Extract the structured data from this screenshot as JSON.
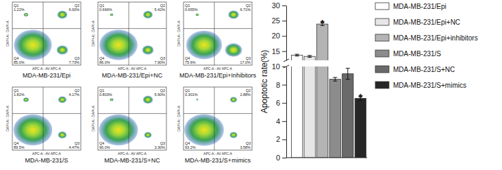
{
  "chart_data": [
    {
      "type": "quadrant",
      "title": "MDA-MB-231/Epi",
      "x_label": "APC-A:: AV APC-A",
      "y_label": "DAPI-A:: DAPI-A",
      "categories": [
        "Q1",
        "Q2",
        "Q3",
        "Q4"
      ],
      "values": [
        1.22,
        6.0,
        7.73,
        85.0
      ],
      "value_labels": [
        "1.22%",
        "6.00%",
        "7.73%",
        "85.0%"
      ],
      "tick_labels": false
    },
    {
      "type": "quadrant",
      "title": "MDA-MB-231/Epi+NC",
      "x_label": "APC-A:: AV APC-A",
      "y_label": "DAPI-A:: DAPI-A",
      "categories": [
        "Q1",
        "Q2",
        "Q3",
        "Q4"
      ],
      "values": [
        0.666,
        5.42,
        7.9,
        86.0
      ],
      "value_labels": [
        "0.666%",
        "5.42%",
        "7.90%",
        "86.0%"
      ],
      "tick_labels": false
    },
    {
      "type": "quadrant",
      "title": "MDA-MB-231/Epi+Inhibitors",
      "x_label": "APC-A:: AV APC-A",
      "y_label": "DAPI-A:: DAPI-A",
      "categories": [
        "Q1",
        "Q2",
        "Q3",
        "Q4"
      ],
      "values": [
        0.655,
        6.71,
        17.0,
        75.6
      ],
      "value_labels": [
        "0.655%",
        "6.71%",
        "17.0%",
        "75.6%"
      ],
      "tick_labels": false
    },
    {
      "type": "quadrant",
      "title": "MDA-MB-231/S",
      "x_label": "APC-A:: AV APC-A",
      "y_label": "DAPI-A:: DAPI-A",
      "categories": [
        "Q1",
        "Q2",
        "Q3",
        "Q4"
      ],
      "values": [
        1.82,
        4.17,
        4.47,
        89.5
      ],
      "value_labels": [
        "1.82%",
        "4.17%",
        "4.47%",
        "89.5%"
      ],
      "tick_labels": false
    },
    {
      "type": "quadrant",
      "title": "MDA-MB-231/S+NC",
      "x_label": "APC-A:: AV APC-A",
      "y_label": "DAPI-A:: DAPI-A",
      "categories": [
        "Q1",
        "Q2",
        "Q3",
        "Q4"
      ],
      "values": [
        0.803,
        5.9,
        3.3,
        90.0
      ],
      "value_labels": [
        "0.803%",
        "5.90%",
        "3.30%",
        "90.0%"
      ],
      "tick_labels": false
    },
    {
      "type": "quadrant",
      "title": "MDA-MB-231/S+mimics",
      "x_label": "APC-A:: AV APC-A",
      "y_label": "DAPI-A:: DAPI-A",
      "categories": [
        "Q1",
        "Q2",
        "Q3",
        "Q4"
      ],
      "values": [
        0.301,
        2.88,
        3.58,
        93.2
      ],
      "value_labels": [
        "0.301%",
        "2.88%",
        "3.58%",
        "93.2%"
      ],
      "tick_labels": false
    },
    {
      "type": "bar",
      "y_label": "Apoptotic rate(%)",
      "categories": [
        "MDA-MB-231/Epi",
        "MDA-MB-231/Epi+NC",
        "MDA-MB-231/Epi+inhibitors",
        "MDA-MB-231/S",
        "MDA-MB-231/S+NC",
        "MDA-MB-231/S+mimics"
      ],
      "values": [
        13.7,
        13.3,
        23.9,
        8.6,
        9.2,
        6.5
      ],
      "errors": [
        0.3,
        0.3,
        0.5,
        0.2,
        0.6,
        0.2
      ],
      "colors": [
        "#ffffff",
        "#e6e6e6",
        "#b4b4b4",
        "#8c8c8c",
        "#6a6a6a",
        "#262626"
      ],
      "ylim": [
        0,
        30
      ],
      "yticks": [
        0,
        2,
        4,
        6,
        8,
        10,
        15,
        20,
        25,
        30
      ],
      "y_break": [
        10,
        12
      ],
      "annotations": [
        {
          "index": 2,
          "text": "*"
        },
        {
          "index": 5,
          "text": "*"
        }
      ],
      "legend": "right",
      "tick_labels": "y"
    }
  ]
}
